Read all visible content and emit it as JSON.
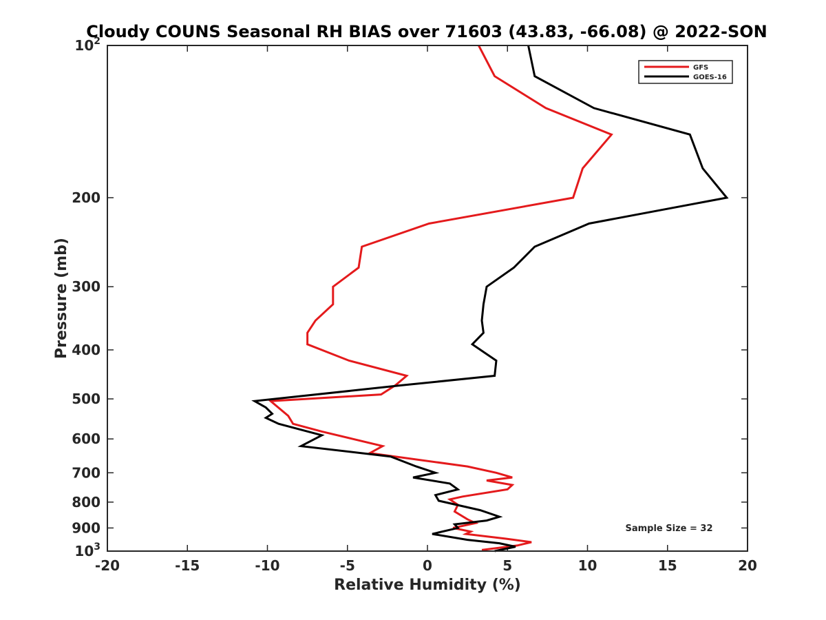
{
  "chart_data": {
    "type": "line",
    "title": "Cloudy COUNS Seasonal RH BIAS over 71603 (43.83, -66.08) @ 2022-SON",
    "xlabel": "Relative Humidity (%)",
    "ylabel": "Pressure (mb)",
    "xlim": [
      -20,
      20
    ],
    "ylim": [
      100,
      1000
    ],
    "yscale": "log",
    "y_reversed": true,
    "x_ticks": [
      -20,
      -15,
      -10,
      -5,
      0,
      5,
      10,
      15,
      20
    ],
    "x_tick_labels": [
      "-20",
      "-15",
      "-10",
      "-5",
      "0",
      "5",
      "10",
      "15",
      "20"
    ],
    "y_ticks": [
      {
        "value": 100,
        "base": "10",
        "exp": "2"
      },
      {
        "value": 200,
        "label": "200"
      },
      {
        "value": 300,
        "label": "300"
      },
      {
        "value": 400,
        "label": "400"
      },
      {
        "value": 500,
        "label": "500"
      },
      {
        "value": 600,
        "label": "600"
      },
      {
        "value": 700,
        "label": "700"
      },
      {
        "value": 800,
        "label": "800"
      },
      {
        "value": 900,
        "label": "900"
      },
      {
        "value": 1000,
        "base": "10",
        "exp": "3"
      }
    ],
    "legend_position": "top-right",
    "annotation": "Sample Size = 32",
    "series": [
      {
        "name": "GFS",
        "color": "#e41a1c",
        "points": [
          [
            3.2,
            100
          ],
          [
            4.2,
            115
          ],
          [
            7.4,
            133
          ],
          [
            11.5,
            150
          ],
          [
            9.7,
            175
          ],
          [
            9.1,
            200
          ],
          [
            0.1,
            225
          ],
          [
            -4.1,
            250
          ],
          [
            -4.3,
            275
          ],
          [
            -5.9,
            300
          ],
          [
            -5.9,
            325
          ],
          [
            -7.0,
            350
          ],
          [
            -7.5,
            370
          ],
          [
            -7.5,
            390
          ],
          [
            -4.9,
            420
          ],
          [
            -1.3,
            450
          ],
          [
            -2.0,
            470
          ],
          [
            -2.9,
            490
          ],
          [
            -9.8,
            505
          ],
          [
            -8.7,
            540
          ],
          [
            -8.4,
            560
          ],
          [
            -6.6,
            580
          ],
          [
            -2.8,
            620
          ],
          [
            -3.6,
            640
          ],
          [
            2.5,
            680
          ],
          [
            4.3,
            700
          ],
          [
            5.3,
            715
          ],
          [
            3.7,
            725
          ],
          [
            5.3,
            740
          ],
          [
            5.0,
            755
          ],
          [
            2.2,
            780
          ],
          [
            1.4,
            790
          ],
          [
            1.9,
            810
          ],
          [
            1.7,
            835
          ],
          [
            2.5,
            865
          ],
          [
            3.0,
            880
          ],
          [
            1.6,
            900
          ],
          [
            2.7,
            915
          ],
          [
            2.4,
            925
          ],
          [
            4.9,
            945
          ],
          [
            6.5,
            960
          ],
          [
            5.6,
            975
          ],
          [
            3.4,
            995
          ]
        ]
      },
      {
        "name": "GOES-16",
        "color": "#000000",
        "points": [
          [
            6.3,
            100
          ],
          [
            6.7,
            115
          ],
          [
            10.4,
            133
          ],
          [
            16.4,
            150
          ],
          [
            17.2,
            175
          ],
          [
            18.7,
            200
          ],
          [
            10.1,
            225
          ],
          [
            6.7,
            250
          ],
          [
            5.4,
            275
          ],
          [
            3.7,
            300
          ],
          [
            3.5,
            325
          ],
          [
            3.4,
            350
          ],
          [
            3.5,
            370
          ],
          [
            2.8,
            390
          ],
          [
            4.3,
            420
          ],
          [
            4.2,
            450
          ],
          [
            -1.6,
            470
          ],
          [
            -10.8,
            505
          ],
          [
            -10.1,
            520
          ],
          [
            -9.7,
            535
          ],
          [
            -10.1,
            545
          ],
          [
            -9.3,
            560
          ],
          [
            -6.6,
            590
          ],
          [
            -7.9,
            620
          ],
          [
            -2.3,
            650
          ],
          [
            -0.7,
            680
          ],
          [
            0.5,
            700
          ],
          [
            -0.9,
            715
          ],
          [
            1.4,
            735
          ],
          [
            1.9,
            755
          ],
          [
            0.5,
            775
          ],
          [
            0.7,
            795
          ],
          [
            3.3,
            830
          ],
          [
            4.5,
            855
          ],
          [
            3.7,
            870
          ],
          [
            1.7,
            885
          ],
          [
            1.9,
            900
          ],
          [
            0.3,
            925
          ],
          [
            2.5,
            950
          ],
          [
            4.5,
            965
          ],
          [
            5.5,
            980
          ],
          [
            4.2,
            1000
          ]
        ]
      }
    ]
  }
}
